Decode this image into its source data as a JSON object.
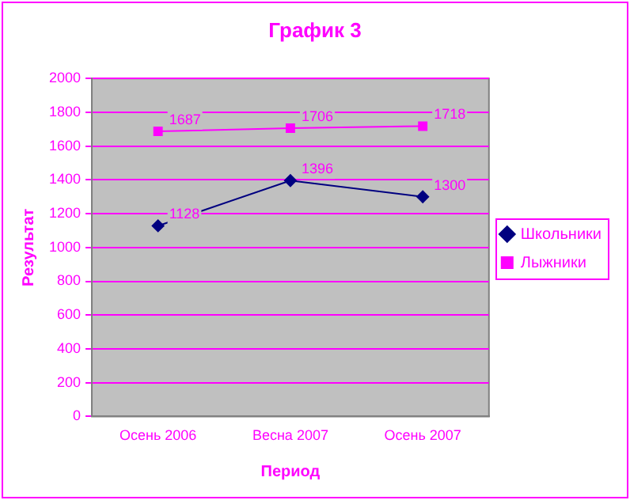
{
  "chart_data": {
    "type": "line",
    "title": "График 3",
    "xlabel": "Период",
    "ylabel": "Результат",
    "categories": [
      "Осень 2006",
      "Весна 2007",
      "Осень 2007"
    ],
    "series": [
      {
        "name": "Школьники",
        "color": "#000080",
        "values": [
          1128,
          1396,
          1300
        ],
        "marker": "diamond"
      },
      {
        "name": "Лыжники",
        "color": "#ff00ff",
        "values": [
          1687,
          1706,
          1718
        ],
        "marker": "square"
      }
    ],
    "ylim": [
      0,
      2000
    ],
    "yticks": [
      0,
      200,
      400,
      600,
      800,
      1000,
      1200,
      1400,
      1600,
      1800,
      2000
    ],
    "grid": "y",
    "legend": "right",
    "data_labels": true,
    "line_style": "solid"
  }
}
